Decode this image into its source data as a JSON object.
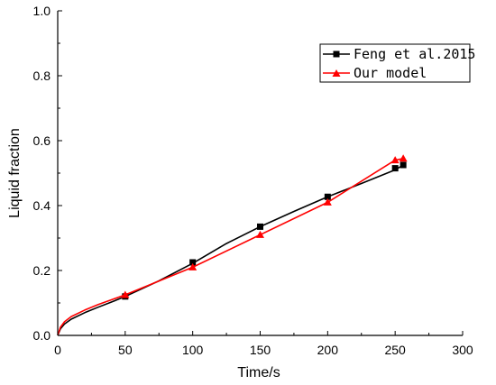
{
  "chart_data": {
    "type": "line",
    "title": "",
    "xlabel": "Time/s",
    "ylabel": "Liquid fraction",
    "xlim": [
      0,
      300
    ],
    "ylim": [
      0,
      1.0
    ],
    "x_ticks": [
      0,
      50,
      100,
      150,
      200,
      250,
      300
    ],
    "y_ticks": [
      0.0,
      0.2,
      0.4,
      0.6,
      0.8,
      1.0
    ],
    "x_tick_labels": [
      "0",
      "50",
      "100",
      "150",
      "200",
      "250",
      "300"
    ],
    "y_tick_labels": [
      "0.0",
      "0.2",
      "0.4",
      "0.6",
      "0.8",
      "1.0"
    ],
    "grid": false,
    "legend_position": "top-right",
    "series": [
      {
        "name": "Feng et al.2015",
        "color": "#000000",
        "marker": "square",
        "curve_x": [
          0,
          2,
          5,
          10,
          20,
          30,
          40,
          50,
          75,
          100,
          125,
          150,
          175,
          200,
          225,
          250,
          256
        ],
        "curve_y": [
          0,
          0.02,
          0.035,
          0.05,
          0.07,
          0.087,
          0.103,
          0.12,
          0.168,
          0.222,
          0.283,
          0.335,
          0.382,
          0.427,
          0.468,
          0.51,
          0.525
        ],
        "marker_x": [
          50,
          100,
          150,
          200,
          250,
          256
        ],
        "marker_y": [
          0.12,
          0.225,
          0.335,
          0.427,
          0.515,
          0.525
        ]
      },
      {
        "name": "Our model",
        "color": "#ff0000",
        "marker": "triangle",
        "curve_x": [
          0,
          2,
          5,
          10,
          20,
          30,
          40,
          50,
          100,
          150,
          200,
          250,
          256
        ],
        "curve_y": [
          0,
          0.025,
          0.042,
          0.058,
          0.078,
          0.095,
          0.11,
          0.125,
          0.21,
          0.31,
          0.41,
          0.54,
          0.545
        ],
        "marker_x": [
          50,
          100,
          150,
          200,
          250,
          256
        ],
        "marker_y": [
          0.125,
          0.21,
          0.31,
          0.41,
          0.54,
          0.545
        ]
      }
    ]
  }
}
